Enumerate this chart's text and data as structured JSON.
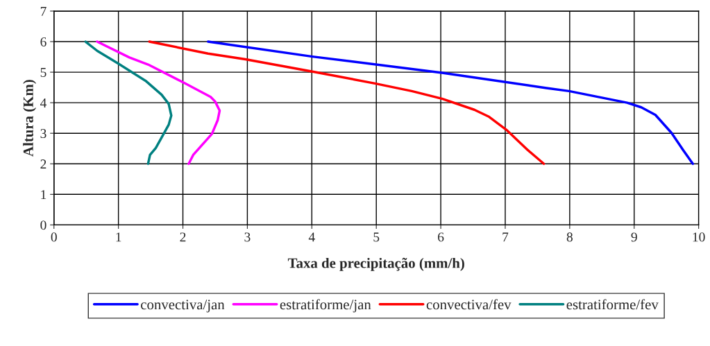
{
  "chart_data": {
    "type": "line",
    "xlabel": "Taxa de precipitação (mm/h)",
    "ylabel": "Altura (Km)",
    "xlim": [
      0,
      10
    ],
    "ylim": [
      0,
      7
    ],
    "xticks": [
      0,
      1,
      2,
      3,
      4,
      5,
      6,
      7,
      8,
      9,
      10
    ],
    "yticks": [
      0,
      1,
      2,
      3,
      4,
      5,
      6,
      7
    ],
    "grid": true,
    "legend": "bottom",
    "marker": "none",
    "line_style": "solid",
    "series": [
      {
        "name": "convectiva/jan",
        "color": "#0000ff",
        "x": [
          2.39,
          4.01,
          6.02,
          7.64,
          7.99,
          8.89,
          9.11,
          9.33,
          9.58,
          9.76,
          9.91
        ],
        "values": [
          6,
          5.51,
          4.98,
          4.48,
          4.38,
          4.0,
          3.85,
          3.6,
          3.01,
          2.45,
          2
        ]
      },
      {
        "name": "estratiforme/jan",
        "color": "#ff00ff",
        "x": [
          0.67,
          1.17,
          1.46,
          2.03,
          2.43,
          2.5,
          2.57,
          2.54,
          2.45,
          2.16,
          2.09
        ],
        "values": [
          6,
          5.48,
          5.25,
          4.64,
          4.19,
          4.04,
          3.74,
          3.43,
          2.98,
          2.29,
          2
        ]
      },
      {
        "name": "convectiva/fev",
        "color": "#ff0000",
        "x": [
          1.48,
          2.39,
          2.97,
          4.01,
          4.98,
          5.55,
          6.02,
          6.52,
          6.74,
          7.03,
          7.35,
          7.6
        ],
        "values": [
          6,
          5.61,
          5.42,
          5.02,
          4.63,
          4.38,
          4.13,
          3.77,
          3.55,
          3.09,
          2.45,
          2
        ]
      },
      {
        "name": "estratiforme/fev",
        "color": "#008080",
        "x": [
          0.49,
          0.67,
          0.99,
          1.42,
          1.67,
          1.78,
          1.82,
          1.78,
          1.58,
          1.49,
          1.46
        ],
        "values": [
          6,
          5.7,
          5.29,
          4.72,
          4.26,
          3.96,
          3.58,
          3.28,
          2.52,
          2.29,
          2
        ]
      }
    ]
  }
}
